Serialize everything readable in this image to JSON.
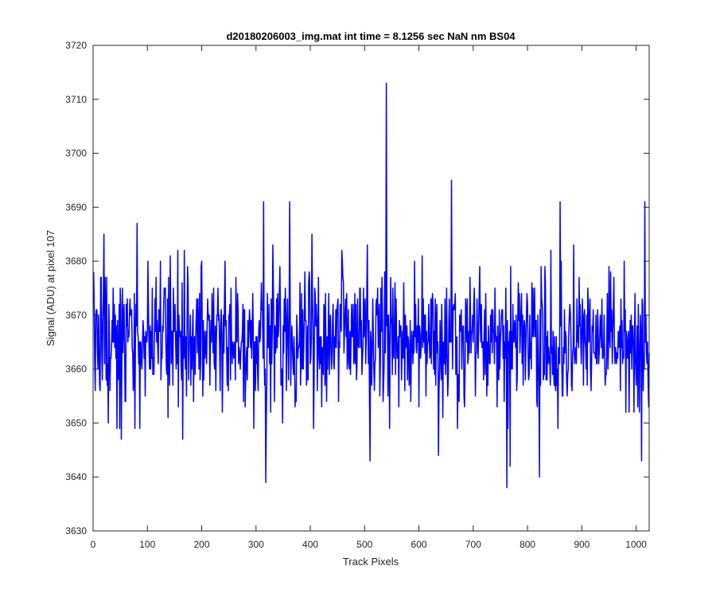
{
  "chart_data": {
    "type": "line",
    "title": "d20180206003_img.mat int time = 8.1256 sec  NaN nm BS04",
    "xlabel": "Track Pixels",
    "ylabel": "Signal (ADU) at pixel 107",
    "xlim": [
      0,
      1024
    ],
    "ylim": [
      3630,
      3720
    ],
    "x_ticks": [
      0,
      100,
      200,
      300,
      400,
      500,
      600,
      700,
      800,
      900,
      1000
    ],
    "y_ticks": [
      3630,
      3640,
      3650,
      3660,
      3670,
      3680,
      3690,
      3700,
      3710,
      3720
    ],
    "grid": false,
    "line_color": "#0000ff",
    "series": [
      {
        "x_start": 1,
        "x_step": 1,
        "count": 1024,
        "baseline_mean": 3665.5,
        "noise_std": 6.5,
        "visible_range_min": 3638,
        "visible_range_max": 3713,
        "notable_points": [
          {
            "x": 2,
            "y": 3672
          },
          {
            "x": 4,
            "y": 3656
          },
          {
            "x": 20,
            "y": 3685
          },
          {
            "x": 52,
            "y": 3647
          },
          {
            "x": 81,
            "y": 3687
          },
          {
            "x": 165,
            "y": 3647
          },
          {
            "x": 314,
            "y": 3691
          },
          {
            "x": 318,
            "y": 3639
          },
          {
            "x": 362,
            "y": 3691
          },
          {
            "x": 510,
            "y": 3643
          },
          {
            "x": 540,
            "y": 3713
          },
          {
            "x": 546,
            "y": 3649
          },
          {
            "x": 636,
            "y": 3644
          },
          {
            "x": 660,
            "y": 3695
          },
          {
            "x": 762,
            "y": 3638
          },
          {
            "x": 768,
            "y": 3642
          },
          {
            "x": 822,
            "y": 3640
          },
          {
            "x": 860,
            "y": 3691
          },
          {
            "x": 1010,
            "y": 3643
          },
          {
            "x": 1016,
            "y": 3691
          },
          {
            "x": 1022,
            "y": 3658
          }
        ]
      }
    ]
  }
}
